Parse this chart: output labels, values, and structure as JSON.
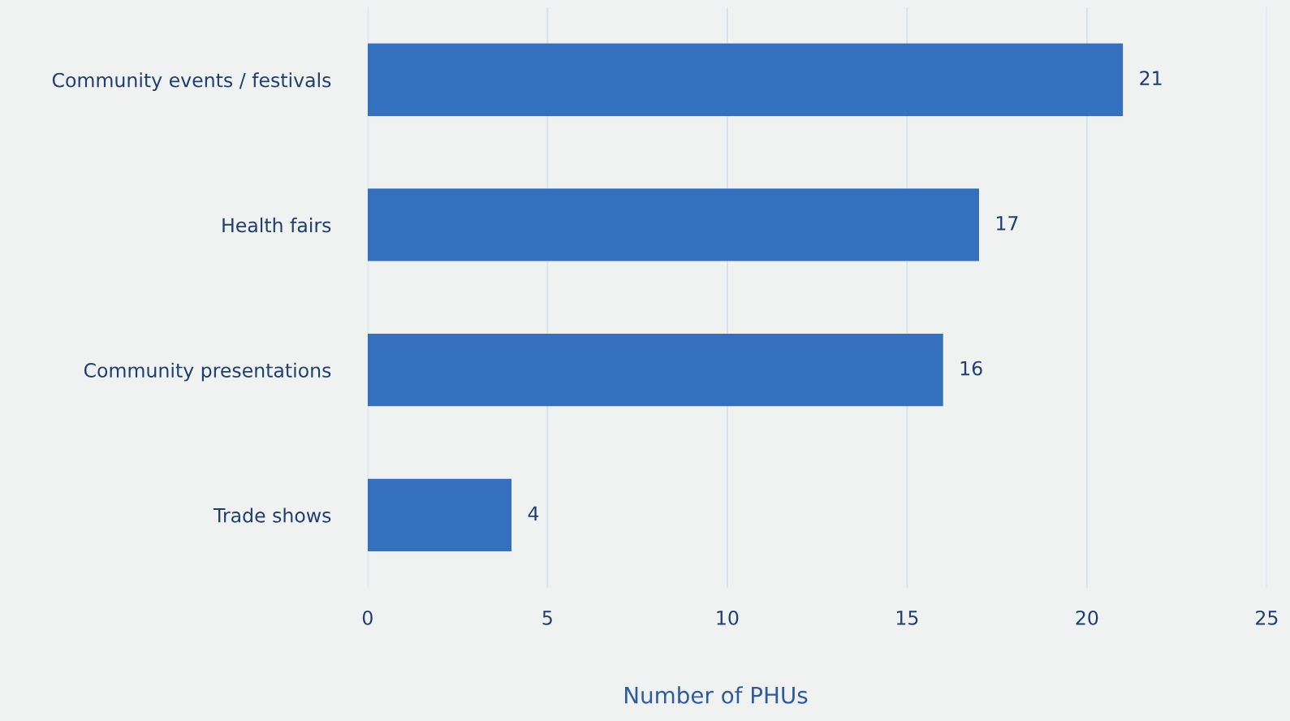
{
  "chart_data": {
    "type": "bar",
    "orientation": "horizontal",
    "xlabel": "Number of PHUs",
    "categories": [
      "Community events / festivals",
      "Health fairs",
      "Community presentations",
      "Trade shows"
    ],
    "values": [
      21,
      17,
      16,
      4
    ],
    "color": "#3470bd",
    "xlim": [
      0,
      25
    ],
    "xticks": [
      0,
      5,
      10,
      15,
      20,
      25
    ],
    "grid": "x",
    "data_labels": true,
    "legend": false
  }
}
